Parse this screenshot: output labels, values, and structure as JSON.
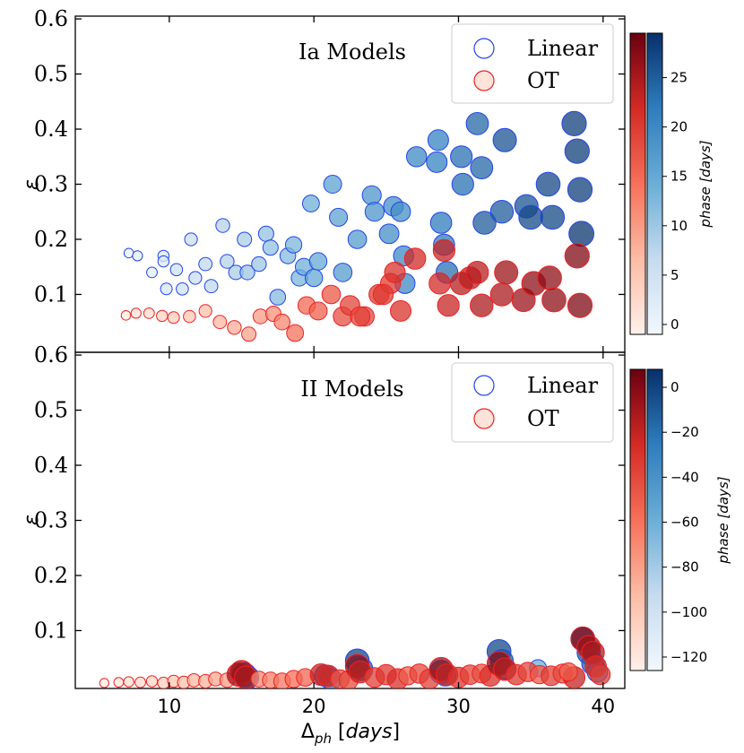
{
  "chart_data": [
    {
      "type": "scatter",
      "title": "Ia Models",
      "xlabel": "",
      "ylabel": "ε",
      "xlim": [
        3.5,
        41.5
      ],
      "ylim": [
        -0.005,
        0.605
      ],
      "yticks": [
        "0.1",
        "0.2",
        "0.3",
        "0.4",
        "0.5",
        "0.6"
      ],
      "legend": {
        "placement": "top-right",
        "entries": [
          "Linear",
          "OT"
        ]
      },
      "colorbar": {
        "label": "phase [days]",
        "ticks": [
          "0",
          "5",
          "10",
          "15",
          "20",
          "25"
        ],
        "range": [
          -1,
          29.5
        ]
      },
      "series": [
        {
          "name": "Linear",
          "color": "#2563d6",
          "points": [
            [
              7.2,
              0.175,
              0
            ],
            [
              7.8,
              0.17,
              1
            ],
            [
              8.8,
              0.14,
              2
            ],
            [
              9.6,
              0.17,
              3
            ],
            [
              9.6,
              0.16,
              3
            ],
            [
              9.8,
              0.11,
              4
            ],
            [
              10.5,
              0.145,
              5
            ],
            [
              10.9,
              0.11,
              5
            ],
            [
              11.5,
              0.2,
              6
            ],
            [
              11.8,
              0.13,
              6
            ],
            [
              12.5,
              0.155,
              7
            ],
            [
              12.9,
              0.115,
              7
            ],
            [
              13.7,
              0.225,
              8
            ],
            [
              14.0,
              0.16,
              8
            ],
            [
              14.6,
              0.14,
              9
            ],
            [
              15.2,
              0.2,
              9
            ],
            [
              15.4,
              0.14,
              10
            ],
            [
              16.2,
              0.155,
              10
            ],
            [
              16.7,
              0.21,
              11
            ],
            [
              17.0,
              0.185,
              11
            ],
            [
              17.5,
              0.095,
              12
            ],
            [
              18.2,
              0.17,
              12
            ],
            [
              18.6,
              0.19,
              13
            ],
            [
              19.0,
              0.13,
              13
            ],
            [
              19.3,
              0.15,
              14
            ],
            [
              19.8,
              0.265,
              14
            ],
            [
              20.0,
              0.13,
              15
            ],
            [
              20.3,
              0.16,
              15
            ],
            [
              21.3,
              0.3,
              16
            ],
            [
              21.7,
              0.24,
              16
            ],
            [
              22.0,
              0.14,
              17
            ],
            [
              23.0,
              0.2,
              17
            ],
            [
              24.0,
              0.28,
              18
            ],
            [
              24.2,
              0.25,
              18
            ],
            [
              25.2,
              0.21,
              19
            ],
            [
              25.5,
              0.26,
              19
            ],
            [
              26.0,
              0.25,
              19
            ],
            [
              26.2,
              0.17,
              20
            ],
            [
              26.3,
              0.12,
              20
            ],
            [
              27.1,
              0.35,
              20
            ],
            [
              28.5,
              0.34,
              21
            ],
            [
              28.6,
              0.38,
              21
            ],
            [
              28.8,
              0.23,
              22
            ],
            [
              29.0,
              0.19,
              22
            ],
            [
              29.2,
              0.14,
              23
            ],
            [
              30.2,
              0.35,
              23
            ],
            [
              30.3,
              0.3,
              23
            ],
            [
              31.3,
              0.41,
              24
            ],
            [
              31.6,
              0.33,
              24
            ],
            [
              31.8,
              0.23,
              25
            ],
            [
              33.0,
              0.25,
              25
            ],
            [
              33.2,
              0.38,
              26
            ],
            [
              34.7,
              0.26,
              26
            ],
            [
              35.0,
              0.24,
              27
            ],
            [
              36.2,
              0.3,
              27
            ],
            [
              36.5,
              0.24,
              27
            ],
            [
              38.0,
              0.41,
              28
            ],
            [
              38.2,
              0.36,
              28
            ],
            [
              38.4,
              0.29,
              28
            ],
            [
              38.5,
              0.21,
              29
            ]
          ]
        },
        {
          "name": "OT",
          "color": "#e03020",
          "points": [
            [
              7.0,
              0.062,
              0
            ],
            [
              7.7,
              0.066,
              1
            ],
            [
              8.6,
              0.066,
              2
            ],
            [
              9.5,
              0.061,
              3
            ],
            [
              10.3,
              0.058,
              4
            ],
            [
              11.4,
              0.06,
              5
            ],
            [
              12.5,
              0.07,
              6
            ],
            [
              13.5,
              0.05,
              7
            ],
            [
              14.5,
              0.04,
              8
            ],
            [
              15.5,
              0.028,
              9
            ],
            [
              16.3,
              0.06,
              10
            ],
            [
              17.2,
              0.065,
              11
            ],
            [
              17.8,
              0.05,
              12
            ],
            [
              18.7,
              0.03,
              14
            ],
            [
              19.5,
              0.08,
              15
            ],
            [
              20.3,
              0.07,
              16
            ],
            [
              21.2,
              0.1,
              17
            ],
            [
              22.0,
              0.06,
              18
            ],
            [
              22.5,
              0.08,
              19
            ],
            [
              23.5,
              0.06,
              19
            ],
            [
              24.5,
              0.1,
              20
            ],
            [
              25.3,
              0.12,
              20
            ],
            [
              25.6,
              0.14,
              21
            ],
            [
              26.0,
              0.07,
              21
            ],
            [
              27.0,
              0.165,
              22
            ],
            [
              28.7,
              0.12,
              22
            ],
            [
              29.0,
              0.18,
              23
            ],
            [
              29.3,
              0.08,
              23
            ],
            [
              30.2,
              0.12,
              24
            ],
            [
              30.8,
              0.13,
              24
            ],
            [
              31.3,
              0.14,
              24
            ],
            [
              31.6,
              0.08,
              25
            ],
            [
              33.0,
              0.1,
              25
            ],
            [
              33.3,
              0.14,
              26
            ],
            [
              34.5,
              0.09,
              26
            ],
            [
              35.2,
              0.12,
              27
            ],
            [
              36.3,
              0.13,
              27
            ],
            [
              36.6,
              0.09,
              27
            ],
            [
              38.2,
              0.17,
              28
            ],
            [
              38.4,
              0.08,
              28
            ],
            [
              24.8,
              0.1,
              20
            ],
            [
              23.2,
              0.06,
              19
            ]
          ]
        }
      ]
    },
    {
      "type": "scatter",
      "title": "II Models",
      "xlabel": "Δph [days]",
      "ylabel": "ε",
      "xlim": [
        3.5,
        41.5
      ],
      "ylim": [
        -0.005,
        0.605
      ],
      "yticks": [
        "0.1",
        "0.2",
        "0.3",
        "0.4",
        "0.5",
        "0.6"
      ],
      "xticks": [
        "10",
        "20",
        "30",
        "40"
      ],
      "legend": {
        "placement": "top-right",
        "entries": [
          "Linear",
          "OT"
        ]
      },
      "colorbar": {
        "label": "phase [days]",
        "ticks": [
          "0",
          "−20",
          "−40",
          "−60",
          "−80",
          "−100",
          "−120"
        ],
        "range": [
          -126,
          8
        ]
      },
      "series": [
        {
          "name": "Linear",
          "color": "#2563d6",
          "points": [
            [
              15.2,
              0.02,
              -5
            ],
            [
              15.4,
              0.015,
              -10
            ],
            [
              20.8,
              0.018,
              -20
            ],
            [
              21.2,
              0.012,
              -25
            ],
            [
              23.0,
              0.045,
              -2
            ],
            [
              23.3,
              0.03,
              -15
            ],
            [
              28.8,
              0.025,
              -10
            ],
            [
              29.1,
              0.018,
              -30
            ],
            [
              32.8,
              0.062,
              -3
            ],
            [
              33.0,
              0.045,
              -12
            ],
            [
              33.3,
              0.03,
              -35
            ],
            [
              35.5,
              0.032,
              -60
            ],
            [
              38.6,
              0.085,
              -2
            ],
            [
              39.0,
              0.06,
              -8
            ],
            [
              39.3,
              0.04,
              -15
            ],
            [
              39.6,
              0.025,
              -30
            ]
          ]
        },
        {
          "name": "OT",
          "color": "#e03020",
          "points": [
            [
              5.5,
              0.005,
              -125
            ],
            [
              6.5,
              0.006,
              -120
            ],
            [
              7.2,
              0.007,
              -115
            ],
            [
              8.0,
              0.006,
              -112
            ],
            [
              8.8,
              0.008,
              -108
            ],
            [
              9.6,
              0.005,
              -104
            ],
            [
              10.3,
              0.008,
              -100
            ],
            [
              11.0,
              0.006,
              -96
            ],
            [
              11.7,
              0.01,
              -92
            ],
            [
              12.5,
              0.008,
              -88
            ],
            [
              13.2,
              0.012,
              -84
            ],
            [
              14.0,
              0.01,
              -80
            ],
            [
              14.8,
              0.02,
              -5
            ],
            [
              15.0,
              0.025,
              -8
            ],
            [
              15.3,
              0.015,
              -12
            ],
            [
              16.2,
              0.012,
              -70
            ],
            [
              17.0,
              0.01,
              -66
            ],
            [
              17.8,
              0.008,
              -62
            ],
            [
              18.6,
              0.012,
              -58
            ],
            [
              19.4,
              0.015,
              -54
            ],
            [
              20.5,
              0.02,
              -20
            ],
            [
              21.0,
              0.018,
              -25
            ],
            [
              21.8,
              0.012,
              -46
            ],
            [
              22.4,
              0.01,
              -42
            ],
            [
              23.0,
              0.035,
              -2
            ],
            [
              23.2,
              0.025,
              -18
            ],
            [
              24.2,
              0.015,
              -36
            ],
            [
              25.0,
              0.02,
              -32
            ],
            [
              25.8,
              0.012,
              -28
            ],
            [
              26.5,
              0.018,
              -50
            ],
            [
              27.3,
              0.022,
              -40
            ],
            [
              28.0,
              0.012,
              -36
            ],
            [
              28.8,
              0.03,
              -5
            ],
            [
              29.2,
              0.02,
              -20
            ],
            [
              30.0,
              0.015,
              -30
            ],
            [
              30.8,
              0.02,
              -38
            ],
            [
              31.6,
              0.022,
              -44
            ],
            [
              32.2,
              0.018,
              -28
            ],
            [
              32.8,
              0.04,
              -2
            ],
            [
              33.2,
              0.03,
              -15
            ],
            [
              34.0,
              0.02,
              -32
            ],
            [
              34.8,
              0.025,
              -40
            ],
            [
              35.6,
              0.02,
              -48
            ],
            [
              36.4,
              0.018,
              -36
            ],
            [
              37.2,
              0.022,
              -42
            ],
            [
              38.0,
              0.015,
              -20
            ],
            [
              38.6,
              0.085,
              -3
            ],
            [
              39.0,
              0.07,
              -8
            ],
            [
              39.3,
              0.06,
              -12
            ],
            [
              39.5,
              0.035,
              -25
            ],
            [
              39.8,
              0.02,
              -35
            ],
            [
              37.6,
              0.025,
              -50
            ]
          ]
        }
      ]
    }
  ]
}
